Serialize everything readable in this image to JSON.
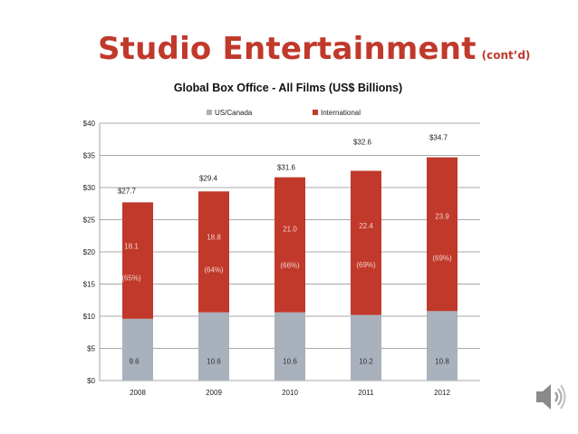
{
  "slide": {
    "title": "Studio Entertainment",
    "title_suffix": "(cont’d)",
    "title_color": "#c0392b"
  },
  "chart_data": {
    "type": "bar",
    "stacked": true,
    "title": "Global Box Office - All Films (US$ Billions)",
    "categories": [
      "2008",
      "2009",
      "2010",
      "2011",
      "2012"
    ],
    "series": [
      {
        "name": "US/Canada",
        "color": "#a9b1bd",
        "values": [
          9.6,
          10.6,
          10.6,
          10.2,
          10.8
        ],
        "labels": [
          "9.6",
          "10.6",
          "10.6",
          "10.2",
          "10.8"
        ]
      },
      {
        "name": "International",
        "color": "#c0392b",
        "values": [
          18.1,
          18.8,
          21.0,
          22.4,
          23.9
        ],
        "labels": [
          "18.1",
          "18.8",
          "21.0",
          "22.4",
          "23.9"
        ]
      }
    ],
    "totals": [
      "$27.7",
      "$29.4",
      "$31.6",
      "$32.6",
      "$34.7"
    ],
    "shares": [
      "(65%)",
      "(64%)",
      "(66%)",
      "(69%)",
      "(69%)"
    ],
    "yticks": [
      "$0",
      "$5",
      "$10",
      "$15",
      "$20",
      "$25",
      "$30",
      "$35",
      "$40"
    ],
    "ylim": [
      0,
      40
    ],
    "grid": true,
    "legend_position": "top"
  },
  "icons": {
    "speaker": "speaker-icon"
  }
}
